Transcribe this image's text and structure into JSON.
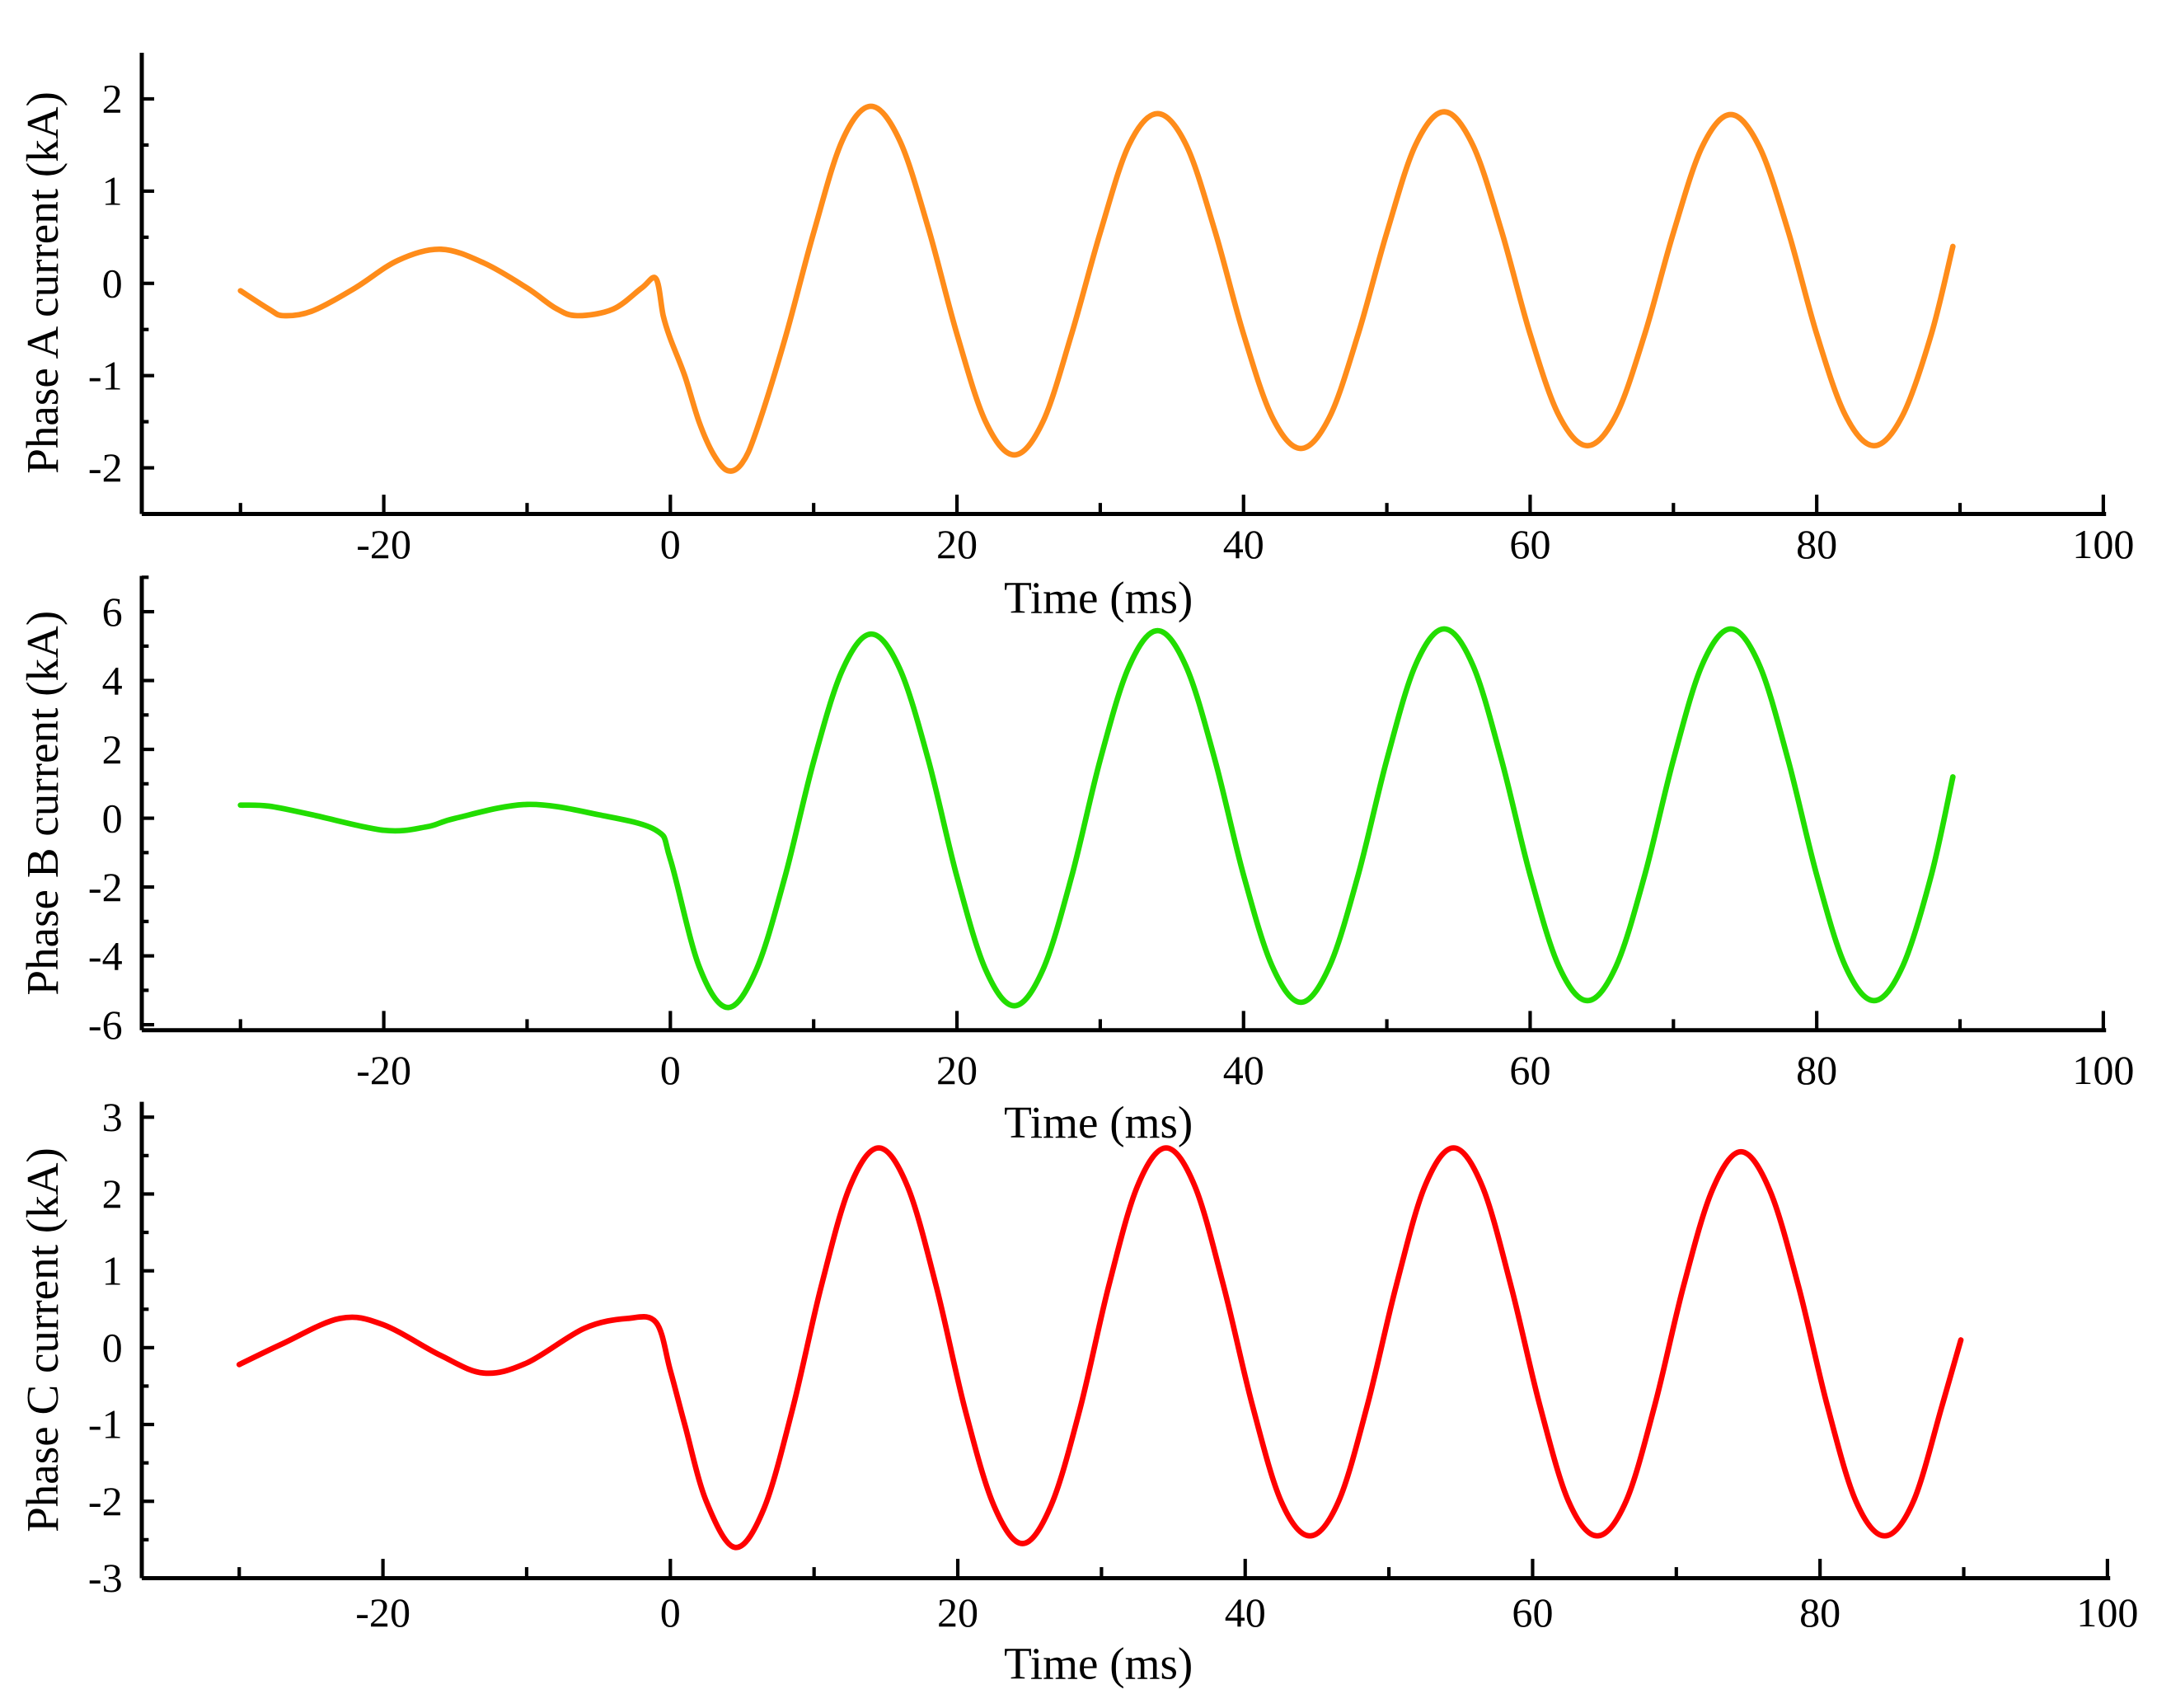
{
  "chart_data": [
    {
      "type": "line",
      "xlabel": "Time (ms)",
      "ylabel": "Phase A current (kA)",
      "xlim": [
        -40,
        100
      ],
      "ylim": [
        -2.5,
        2.5
      ],
      "xticks": [
        -20,
        0,
        20,
        40,
        60,
        80,
        100
      ],
      "xtick_labels": [
        "-20",
        "0",
        "20",
        "40",
        "60",
        "80",
        "100"
      ],
      "yticks": [
        -2,
        -1,
        0,
        1,
        2
      ],
      "ytick_labels": [
        "-2",
        "-1",
        "0",
        "1",
        "2"
      ],
      "grid": false,
      "series": [
        {
          "color": "#ff8c1a",
          "x": [
            -30,
            -28,
            -27,
            -25,
            -22,
            -19,
            -16,
            -13,
            -10,
            -8,
            -6.5,
            -4,
            -2,
            -1,
            -0.5,
            0,
            1,
            2,
            3,
            4,
            5,
            6,
            8,
            10,
            12,
            14,
            16,
            18,
            20,
            22,
            24,
            26,
            28,
            30,
            32,
            34,
            36,
            38,
            40,
            42,
            44,
            46,
            48,
            50,
            52,
            54,
            56,
            58,
            60,
            62,
            64,
            66,
            68,
            70,
            72,
            74,
            76,
            78,
            80,
            82,
            84,
            86,
            88,
            89.5
          ],
          "y": [
            -0.08,
            -0.28,
            -0.35,
            -0.3,
            -0.05,
            0.25,
            0.37,
            0.22,
            -0.05,
            -0.27,
            -0.35,
            -0.28,
            -0.05,
            0.05,
            -0.35,
            -0.6,
            -1.0,
            -1.5,
            -1.85,
            -2.03,
            -1.95,
            -1.6,
            -0.6,
            0.55,
            1.55,
            1.92,
            1.55,
            0.6,
            -0.55,
            -1.5,
            -1.86,
            -1.5,
            -0.55,
            0.55,
            1.5,
            1.84,
            1.5,
            0.57,
            -0.55,
            -1.45,
            -1.79,
            -1.45,
            -0.55,
            0.55,
            1.5,
            1.86,
            1.5,
            0.57,
            -0.55,
            -1.43,
            -1.76,
            -1.43,
            -0.55,
            0.55,
            1.48,
            1.83,
            1.48,
            0.57,
            -0.55,
            -1.43,
            -1.76,
            -1.43,
            -0.55,
            0.4
          ]
        }
      ]
    },
    {
      "type": "line",
      "xlabel": "Time (ms)",
      "ylabel": "Phase B current (kA)",
      "xlim": [
        -40,
        100
      ],
      "ylim": [
        -6.16,
        7.04
      ],
      "xticks": [
        -20,
        0,
        20,
        40,
        60,
        80,
        100
      ],
      "xtick_labels": [
        "-20",
        "0",
        "20",
        "40",
        "60",
        "80",
        "100"
      ],
      "yticks": [
        -6,
        -4,
        -2,
        0,
        2,
        4,
        6
      ],
      "ytick_labels": [
        "-6",
        "-4",
        "-2",
        "0",
        "2",
        "4",
        "6"
      ],
      "grid": false,
      "series": [
        {
          "color": "#22dd00",
          "x": [
            -30,
            -28,
            -25,
            -20,
            -17,
            -15,
            -10,
            -5,
            -1,
            0,
            2,
            4,
            6,
            8,
            10,
            12,
            14,
            16,
            18,
            20,
            22,
            24,
            26,
            28,
            30,
            32,
            34,
            36,
            38,
            40,
            42,
            44,
            46,
            48,
            50,
            52,
            54,
            56,
            58,
            60,
            62,
            64,
            66,
            68,
            70,
            72,
            74,
            76,
            78,
            80,
            82,
            84,
            86,
            88,
            89.5
          ],
          "y": [
            0.38,
            0.35,
            0.1,
            -0.35,
            -0.25,
            0,
            0.4,
            0.1,
            -0.35,
            -1.2,
            -4.3,
            -5.5,
            -4.4,
            -1.7,
            1.65,
            4.3,
            5.35,
            4.35,
            1.7,
            -1.7,
            -4.4,
            -5.45,
            -4.4,
            -1.7,
            1.7,
            4.4,
            5.45,
            4.4,
            1.7,
            -1.65,
            -4.3,
            -5.35,
            -4.3,
            -1.65,
            1.7,
            4.45,
            5.5,
            4.45,
            1.7,
            -1.65,
            -4.3,
            -5.3,
            -4.3,
            -1.65,
            1.7,
            4.45,
            5.5,
            4.45,
            1.7,
            -1.65,
            -4.3,
            -5.3,
            -4.3,
            -1.65,
            1.2
          ]
        }
      ]
    },
    {
      "type": "line",
      "xlabel": "Time (ms)",
      "ylabel": "Phase C current (kA)",
      "xlim": [
        -40,
        100
      ],
      "ylim": [
        -3,
        3.2
      ],
      "xticks": [
        -20,
        0,
        20,
        40,
        60,
        80,
        100
      ],
      "xtick_labels": [
        "-20",
        "0",
        "20",
        "40",
        "60",
        "80",
        "100"
      ],
      "yticks": [
        -3,
        -2,
        -1,
        0,
        1,
        2,
        3
      ],
      "ytick_labels": [
        "-3",
        "-2",
        "-1",
        "0",
        "1",
        "2",
        "3"
      ],
      "grid": false,
      "series": [
        {
          "color": "#ff0000",
          "x": [
            -30,
            -27,
            -23,
            -20,
            -16,
            -13,
            -10,
            -6,
            -3,
            -1,
            0,
            1,
            2.5,
            4.5,
            6.5,
            8.5,
            10.5,
            12.5,
            14.5,
            16.5,
            18.5,
            20.5,
            22.5,
            24.5,
            26.5,
            28.5,
            30.5,
            32.5,
            34.5,
            36.5,
            38.5,
            40.5,
            42.5,
            44.5,
            46.5,
            48.5,
            50.5,
            52.5,
            54.5,
            56.5,
            58.5,
            60.5,
            62.5,
            64.5,
            66.5,
            68.5,
            70.5,
            72.5,
            74.5,
            76.5,
            78.5,
            80.5,
            82.5,
            84.5,
            86.5,
            88.5,
            89.8
          ],
          "y": [
            -0.22,
            0.05,
            0.38,
            0.3,
            -0.1,
            -0.33,
            -0.2,
            0.25,
            0.38,
            0.33,
            -0.3,
            -1.0,
            -2.0,
            -2.6,
            -2.1,
            -0.8,
            0.8,
            2.1,
            2.6,
            2.1,
            0.8,
            -0.8,
            -2.05,
            -2.55,
            -2.05,
            -0.8,
            0.8,
            2.1,
            2.6,
            2.1,
            0.8,
            -0.75,
            -2.0,
            -2.45,
            -2.0,
            -0.75,
            0.8,
            2.1,
            2.6,
            2.1,
            0.8,
            -0.75,
            -2.0,
            -2.45,
            -2.0,
            -0.75,
            0.8,
            2.05,
            2.55,
            2.05,
            0.8,
            -0.75,
            -2.0,
            -2.45,
            -2.0,
            -0.75,
            0.1
          ]
        }
      ]
    }
  ]
}
